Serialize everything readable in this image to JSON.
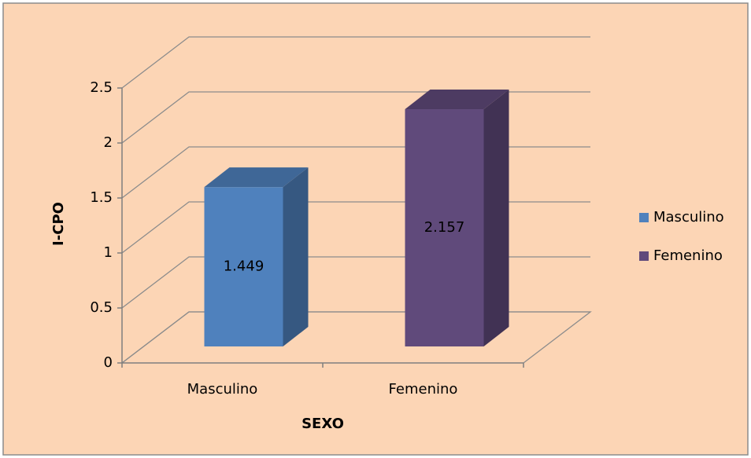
{
  "chart_data": {
    "type": "bar",
    "x_label": "SEXO",
    "y_label": "I-CPO",
    "categories": [
      "Masculino",
      "Femenino"
    ],
    "series": [
      {
        "name": "Masculino",
        "color": "#4f81bd",
        "values": [
          1.449,
          null
        ]
      },
      {
        "name": "Femenino",
        "color": "#604a7b",
        "values": [
          null,
          2.157
        ]
      }
    ],
    "ylim": [
      0,
      2.5
    ],
    "yticks": [
      0,
      0.5,
      1,
      1.5,
      2,
      2.5
    ],
    "grid": true,
    "legend": "right",
    "three_d": true
  }
}
